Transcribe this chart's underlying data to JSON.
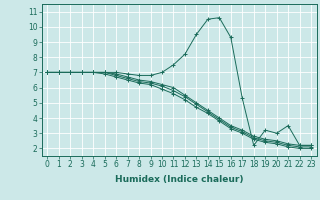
{
  "title": "",
  "xlabel": "Humidex (Indice chaleur)",
  "bg_color": "#cce8e8",
  "grid_color": "#ffffff",
  "line_color": "#1a6b5a",
  "xlim": [
    -0.5,
    23.5
  ],
  "ylim": [
    1.5,
    11.5
  ],
  "xticks": [
    0,
    1,
    2,
    3,
    4,
    5,
    6,
    7,
    8,
    9,
    10,
    11,
    12,
    13,
    14,
    15,
    16,
    17,
    18,
    19,
    20,
    21,
    22,
    23
  ],
  "yticks": [
    2,
    3,
    4,
    5,
    6,
    7,
    8,
    9,
    10,
    11
  ],
  "lines": [
    [
      7.0,
      7.0,
      7.0,
      7.0,
      7.0,
      7.0,
      7.0,
      6.9,
      6.8,
      6.8,
      7.0,
      7.5,
      8.2,
      9.5,
      10.5,
      10.6,
      9.3,
      5.3,
      2.2,
      3.2,
      3.0,
      3.5,
      2.2,
      2.2
    ],
    [
      7.0,
      7.0,
      7.0,
      7.0,
      7.0,
      7.0,
      6.9,
      6.7,
      6.5,
      6.4,
      6.2,
      6.0,
      5.5,
      5.0,
      4.5,
      4.0,
      3.5,
      3.2,
      2.8,
      2.6,
      2.5,
      2.3,
      2.2,
      2.2
    ],
    [
      7.0,
      7.0,
      7.0,
      7.0,
      7.0,
      7.0,
      6.8,
      6.6,
      6.4,
      6.3,
      6.1,
      5.8,
      5.4,
      4.9,
      4.4,
      3.9,
      3.4,
      3.1,
      2.7,
      2.5,
      2.4,
      2.2,
      2.1,
      2.1
    ],
    [
      7.0,
      7.0,
      7.0,
      7.0,
      7.0,
      6.9,
      6.7,
      6.5,
      6.3,
      6.2,
      5.9,
      5.6,
      5.2,
      4.7,
      4.3,
      3.8,
      3.3,
      3.0,
      2.6,
      2.4,
      2.3,
      2.1,
      2.0,
      2.0
    ]
  ],
  "tick_fontsize": 5.5,
  "xlabel_fontsize": 6.5,
  "xlabel_fontweight": "bold"
}
